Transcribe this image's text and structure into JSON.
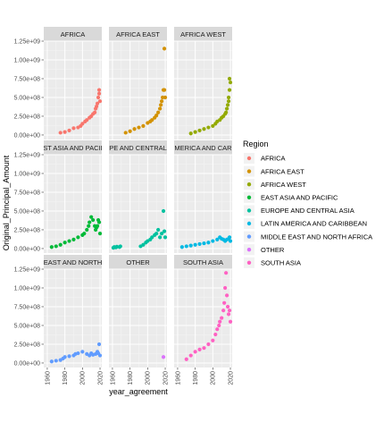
{
  "chart_data": {
    "type": "scatter",
    "facet_titles": [
      "AFRICA",
      "AFRICA EAST",
      "AFRICA WEST",
      "EAST ASIA AND PACIFIC",
      "EUROPE AND CENTRAL ASIA",
      "LATIN AMERICA AND CARIBBEAN",
      "MIDDLE EAST AND NORTH AFRICA",
      "OTHER",
      "SOUTH ASIA"
    ],
    "facet_strip_labels": [
      "AFRICA",
      "AFRICA EAST",
      "AFRICA WEST",
      "ST ASIA AND PACII",
      "PE AND CENTRAL",
      "MERICA AND CAR",
      "EAST AND NORTH",
      "OTHER",
      "SOUTH ASIA"
    ],
    "xlabel": "year_agreement",
    "ylabel": "Original_Principal_Amount",
    "xlim": [
      1956,
      2022
    ],
    "ylim": [
      -60000000,
      1250000000
    ],
    "x_ticks": [
      1960,
      1980,
      2000,
      2020
    ],
    "x_tick_labels": [
      "1960",
      "1980",
      "2000",
      "2020"
    ],
    "y_ticks": [
      0,
      250000000,
      500000000,
      750000000,
      1000000000,
      1250000000
    ],
    "y_tick_labels": [
      "0.00e+00",
      "2.50e+08",
      "5.00e+08",
      "7.50e+08",
      "1.00e+09",
      "1.25e+09"
    ],
    "grid": true,
    "legend_position": "right",
    "legend": {
      "title": "Region",
      "entries": [
        {
          "name": "AFRICA",
          "color": "#F8766D"
        },
        {
          "name": "AFRICA EAST",
          "color": "#D39200"
        },
        {
          "name": "AFRICA WEST",
          "color": "#93AA00"
        },
        {
          "name": "EAST ASIA AND PACIFIC",
          "color": "#00BA38"
        },
        {
          "name": "EUROPE AND CENTRAL ASIA",
          "color": "#00C19F"
        },
        {
          "name": "LATIN AMERICA AND CARIBBEAN",
          "color": "#00B9E3"
        },
        {
          "name": "MIDDLE EAST AND NORTH AFRICA",
          "color": "#619CFF"
        },
        {
          "name": "OTHER",
          "color": "#DB72FB"
        },
        {
          "name": "SOUTH ASIA",
          "color": "#FF61C3"
        }
      ]
    },
    "series": [
      {
        "name": "AFRICA",
        "x": [
          1975,
          1980,
          1985,
          1990,
          1995,
          1998,
          2000,
          2003,
          2005,
          2008,
          2010,
          2012,
          2014,
          2015,
          2016,
          2017,
          2018,
          2019,
          2019,
          2020
        ],
        "y": [
          30000000,
          40000000,
          60000000,
          90000000,
          100000000,
          120000000,
          150000000,
          180000000,
          200000000,
          230000000,
          250000000,
          280000000,
          300000000,
          350000000,
          380000000,
          420000000,
          500000000,
          550000000,
          600000000,
          450000000
        ]
      },
      {
        "name": "AFRICA EAST",
        "x": [
          1975,
          1980,
          1985,
          1990,
          1995,
          2000,
          2003,
          2005,
          2008,
          2010,
          2012,
          2014,
          2015,
          2016,
          2017,
          2018,
          2019,
          2019,
          2020
        ],
        "y": [
          30000000,
          50000000,
          80000000,
          100000000,
          120000000,
          160000000,
          180000000,
          200000000,
          230000000,
          260000000,
          300000000,
          350000000,
          400000000,
          450000000,
          500000000,
          600000000,
          1150000000,
          600000000,
          500000000
        ]
      },
      {
        "name": "AFRICA WEST",
        "x": [
          1975,
          1980,
          1985,
          1990,
          1995,
          2000,
          2003,
          2005,
          2008,
          2010,
          2012,
          2014,
          2015,
          2016,
          2017,
          2018,
          2018,
          2019,
          2019,
          2020
        ],
        "y": [
          20000000,
          40000000,
          60000000,
          80000000,
          100000000,
          120000000,
          150000000,
          180000000,
          200000000,
          230000000,
          250000000,
          280000000,
          300000000,
          350000000,
          400000000,
          450000000,
          500000000,
          600000000,
          750000000,
          700000000
        ]
      },
      {
        "name": "EAST ASIA AND PACIFIC",
        "x": [
          1965,
          1970,
          1975,
          1980,
          1985,
          1990,
          1995,
          2000,
          2002,
          2005,
          2007,
          2008,
          2010,
          2012,
          2014,
          2015,
          2016,
          2017,
          2018,
          2019,
          2020
        ],
        "y": [
          20000000,
          30000000,
          50000000,
          80000000,
          100000000,
          120000000,
          150000000,
          180000000,
          200000000,
          250000000,
          300000000,
          350000000,
          420000000,
          380000000,
          300000000,
          250000000,
          280000000,
          300000000,
          380000000,
          350000000,
          200000000
        ]
      },
      {
        "name": "EUROPE AND CENTRAL ASIA",
        "x": [
          1961,
          1962,
          1964,
          1965,
          1968,
          1969,
          1992,
          1995,
          1998,
          2000,
          2003,
          2005,
          2008,
          2010,
          2012,
          2014,
          2016,
          2018,
          2019,
          2020
        ],
        "y": [
          10000000,
          20000000,
          15000000,
          25000000,
          20000000,
          30000000,
          30000000,
          50000000,
          80000000,
          100000000,
          120000000,
          150000000,
          180000000,
          200000000,
          250000000,
          150000000,
          200000000,
          500000000,
          230000000,
          150000000
        ]
      },
      {
        "name": "LATIN AMERICA AND CARIBBEAN",
        "x": [
          1965,
          1970,
          1975,
          1980,
          1985,
          1990,
          1995,
          2000,
          2005,
          2008,
          2010,
          2012,
          2014,
          2016,
          2018,
          2019,
          2020
        ],
        "y": [
          20000000,
          30000000,
          40000000,
          50000000,
          60000000,
          70000000,
          80000000,
          100000000,
          120000000,
          150000000,
          130000000,
          120000000,
          100000000,
          120000000,
          130000000,
          150000000,
          100000000
        ]
      },
      {
        "name": "MIDDLE EAST AND NORTH AFRICA",
        "x": [
          1965,
          1970,
          1975,
          1978,
          1980,
          1985,
          1990,
          1992,
          1995,
          2000,
          2005,
          2008,
          2010,
          2012,
          2015,
          2017,
          2018,
          2019,
          2020
        ],
        "y": [
          20000000,
          30000000,
          40000000,
          60000000,
          80000000,
          90000000,
          100000000,
          120000000,
          130000000,
          150000000,
          120000000,
          100000000,
          130000000,
          110000000,
          120000000,
          150000000,
          130000000,
          250000000,
          100000000
        ]
      },
      {
        "name": "OTHER",
        "x": [
          2018
        ],
        "y": [
          80000000
        ]
      },
      {
        "name": "SOUTH ASIA",
        "x": [
          1970,
          1975,
          1980,
          1985,
          1990,
          1995,
          2000,
          2003,
          2005,
          2007,
          2008,
          2010,
          2012,
          2013,
          2014,
          2015,
          2016,
          2017,
          2018,
          2019,
          2020
        ],
        "y": [
          50000000,
          100000000,
          150000000,
          180000000,
          200000000,
          250000000,
          300000000,
          380000000,
          450000000,
          500000000,
          550000000,
          600000000,
          700000000,
          800000000,
          1000000000,
          1200000000,
          900000000,
          750000000,
          650000000,
          700000000,
          550000000
        ]
      }
    ]
  }
}
